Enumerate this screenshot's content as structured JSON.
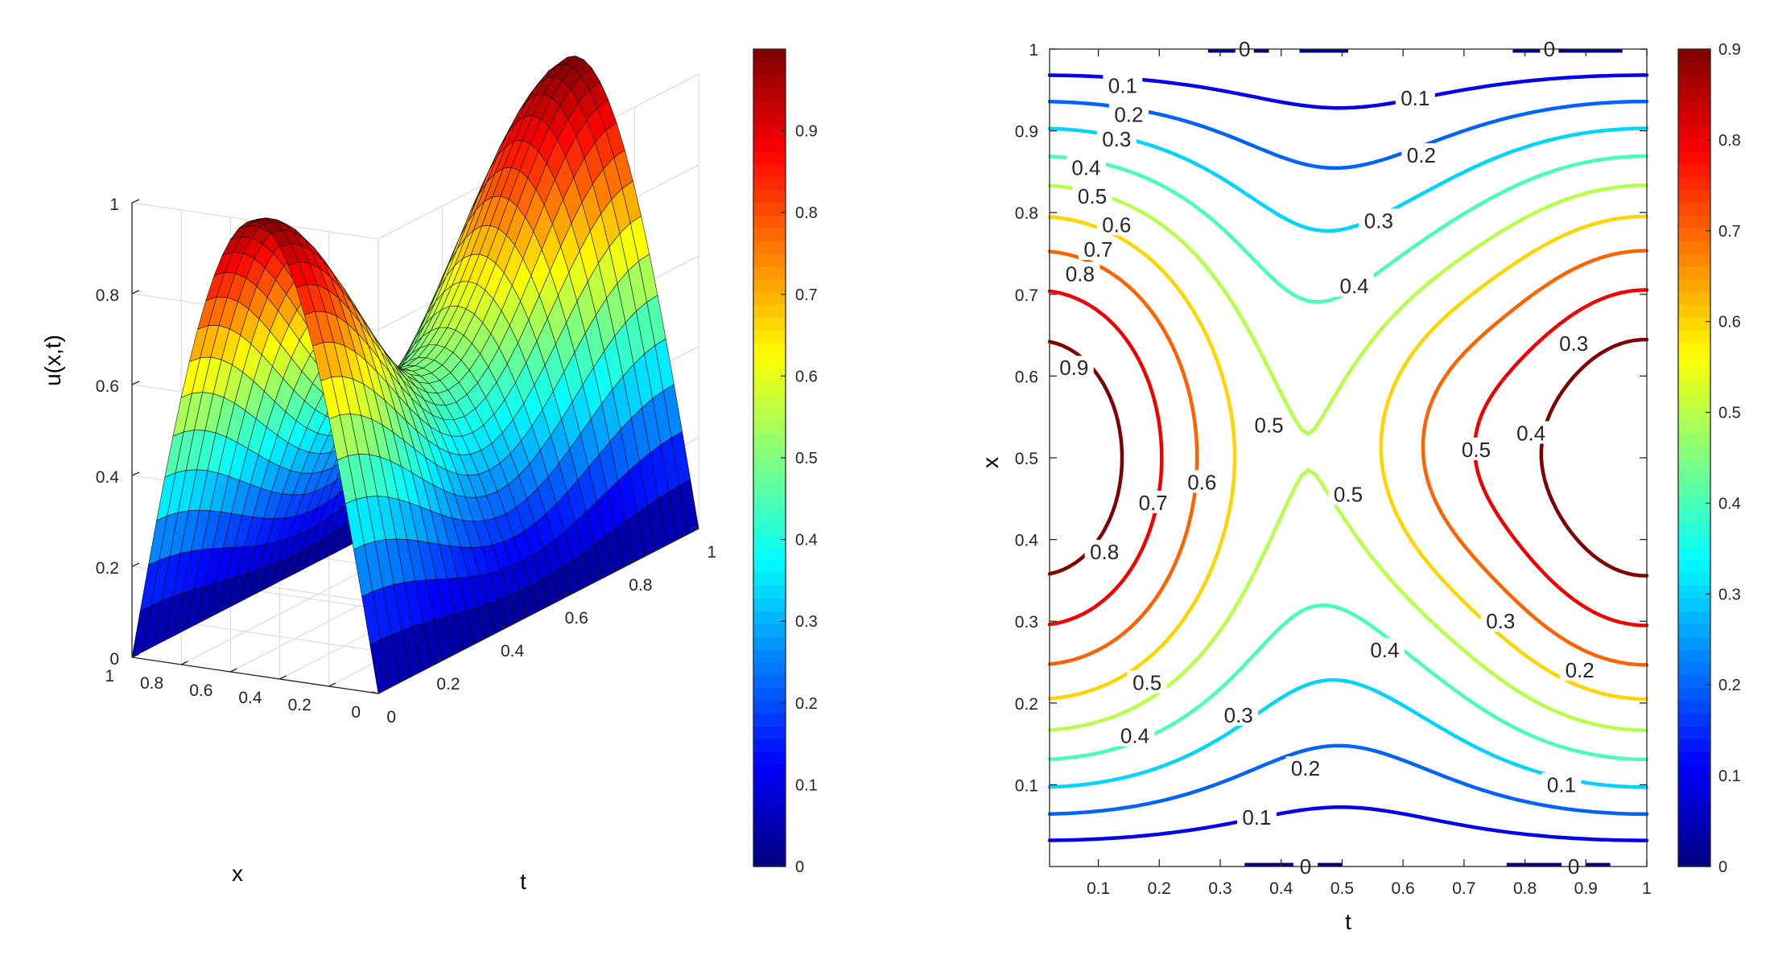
{
  "colors": {
    "axis": "#262626",
    "grid": "#dedede",
    "background": "#ffffff",
    "colormap": "jet"
  },
  "chart_data": [
    {
      "type": "surface",
      "title": "",
      "function": "u(x,t) = sin(pi*x) * (0.75 + 0.25*cos(2*pi*t))",
      "xlabel": "t",
      "ylabel": "x",
      "zlabel": "u(x,t)",
      "t_range": [
        0,
        1
      ],
      "x_range": [
        0,
        1
      ],
      "z_range": [
        0,
        1
      ],
      "grid_points": 31,
      "t_ticks": [
        "0",
        "0.2",
        "0.4",
        "0.6",
        "0.8",
        "1"
      ],
      "x_ticks": [
        "0",
        "0.2",
        "0.4",
        "0.6",
        "0.8",
        "1"
      ],
      "z_ticks": [
        "0",
        "0.2",
        "0.4",
        "0.6",
        "0.8",
        "1"
      ],
      "colorbar": {
        "range": [
          0,
          1
        ],
        "tick_values": [
          0,
          0.1,
          0.2,
          0.3,
          0.4,
          0.5,
          0.6,
          0.7,
          0.8,
          0.9
        ],
        "tick_labels": [
          "0",
          "0.1",
          "0.2",
          "0.3",
          "0.4",
          "0.5",
          "0.6",
          "0.7",
          "0.8",
          "0.9"
        ]
      },
      "grid": true
    },
    {
      "type": "contour",
      "title": "",
      "xlabel": "t",
      "ylabel": "x",
      "xlim": [
        0,
        1
      ],
      "ylim": [
        0,
        1
      ],
      "x_ticks": [
        "0.1",
        "0.2",
        "0.3",
        "0.4",
        "0.5",
        "0.6",
        "0.7",
        "0.8",
        "0.9",
        "1"
      ],
      "y_ticks": [
        "0.1",
        "0.2",
        "0.3",
        "0.4",
        "0.5",
        "0.6",
        "0.7",
        "0.8",
        "0.9",
        "1"
      ],
      "levels": [
        0,
        0.1,
        0.2,
        0.3,
        0.4,
        0.5,
        0.6,
        0.7,
        0.8,
        0.9
      ],
      "colorbar": {
        "range": [
          0,
          0.9
        ],
        "tick_values": [
          0,
          0.1,
          0.2,
          0.3,
          0.4,
          0.5,
          0.6,
          0.7,
          0.8,
          0.9
        ],
        "tick_labels": [
          "0",
          "0.1",
          "0.2",
          "0.3",
          "0.4",
          "0.5",
          "0.6",
          "0.7",
          "0.8",
          "0.9"
        ]
      },
      "contour_labels": [
        {
          "text": "0",
          "t": 0.34,
          "x": 1.0
        },
        {
          "text": "0",
          "t": 0.84,
          "x": 1.0
        },
        {
          "text": "0.1",
          "t": 0.14,
          "x": 0.955
        },
        {
          "text": "0.1",
          "t": 0.62,
          "x": 0.94
        },
        {
          "text": "0.2",
          "t": 0.15,
          "x": 0.92
        },
        {
          "text": "0.2",
          "t": 0.63,
          "x": 0.87
        },
        {
          "text": "0.3",
          "t": 0.13,
          "x": 0.89
        },
        {
          "text": "0.3",
          "t": 0.56,
          "x": 0.79
        },
        {
          "text": "0.4",
          "t": 0.08,
          "x": 0.855
        },
        {
          "text": "0.4",
          "t": 0.52,
          "x": 0.71
        },
        {
          "text": "0.5",
          "t": 0.09,
          "x": 0.82
        },
        {
          "text": "0.6",
          "t": 0.13,
          "x": 0.785
        },
        {
          "text": "0.7",
          "t": 0.1,
          "x": 0.755
        },
        {
          "text": "0.8",
          "t": 0.07,
          "x": 0.725
        },
        {
          "text": "0.9",
          "t": 0.06,
          "x": 0.61
        },
        {
          "text": "0.5",
          "t": 0.38,
          "x": 0.54
        },
        {
          "text": "0.5",
          "t": 0.51,
          "x": 0.455
        },
        {
          "text": "0.5",
          "t": 0.72,
          "x": 0.51
        },
        {
          "text": "0.4",
          "t": 0.81,
          "x": 0.53
        },
        {
          "text": "0.3",
          "t": 0.88,
          "x": 0.64
        },
        {
          "text": "0.6",
          "t": 0.27,
          "x": 0.47
        },
        {
          "text": "0.7",
          "t": 0.19,
          "x": 0.445
        },
        {
          "text": "0.8",
          "t": 0.11,
          "x": 0.385
        },
        {
          "text": "0.4",
          "t": 0.57,
          "x": 0.265
        },
        {
          "text": "0.3",
          "t": 0.76,
          "x": 0.3
        },
        {
          "text": "0.2",
          "t": 0.89,
          "x": 0.24
        },
        {
          "text": "0.5",
          "t": 0.18,
          "x": 0.225
        },
        {
          "text": "0.4",
          "t": 0.16,
          "x": 0.16
        },
        {
          "text": "0.3",
          "t": 0.33,
          "x": 0.185
        },
        {
          "text": "0.2",
          "t": 0.44,
          "x": 0.12
        },
        {
          "text": "0.1",
          "t": 0.36,
          "x": 0.06
        },
        {
          "text": "0.1",
          "t": 0.86,
          "x": 0.1
        },
        {
          "text": "0",
          "t": 0.44,
          "x": 0.0
        },
        {
          "text": "0",
          "t": 0.88,
          "x": 0.0
        }
      ],
      "grid": false
    }
  ]
}
